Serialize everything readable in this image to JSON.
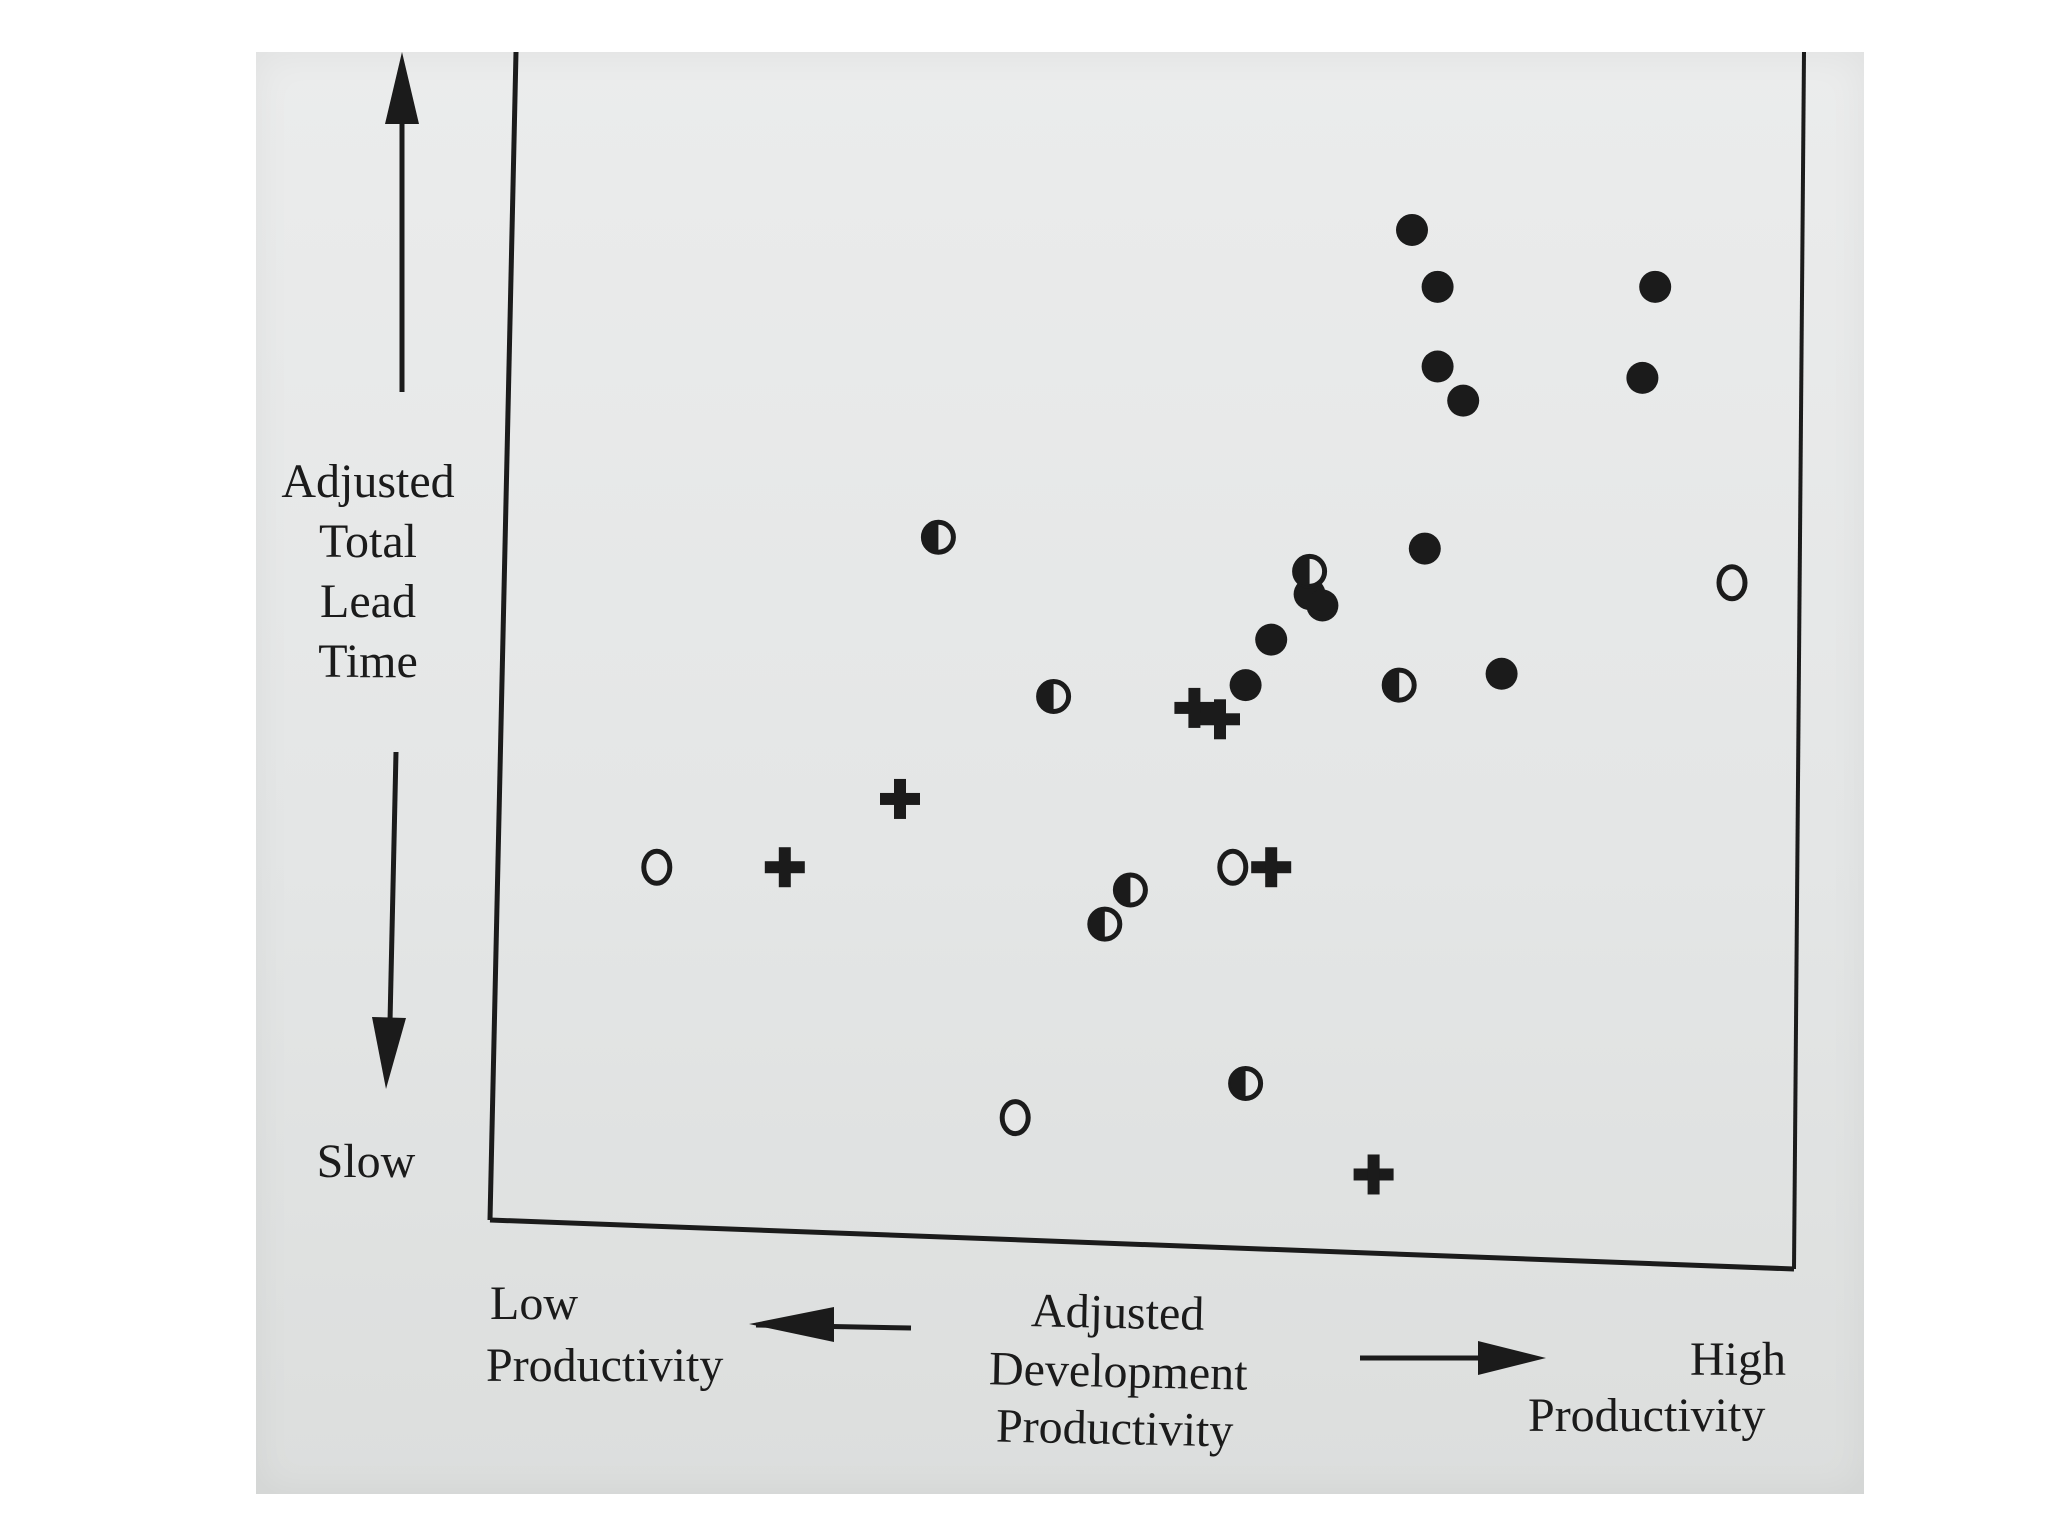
{
  "chart_data": {
    "type": "scatter",
    "title": "",
    "ylabel_lines": [
      "Adjusted",
      "Total",
      "Lead",
      "Time"
    ],
    "y_low_label": "Slow",
    "xlabel_lines": [
      "Adjusted",
      "Development",
      "Productivity"
    ],
    "x_low_label_lines": [
      "Low",
      "Productivity"
    ],
    "x_high_label_lines": [
      "High",
      "Productivity"
    ],
    "xlim": [
      0,
      100
    ],
    "ylim": [
      0,
      100
    ],
    "grid": false,
    "legend": "none",
    "series": [
      {
        "name": "filled-circle",
        "marker": "filled-circle",
        "points": [
          {
            "x": 70,
            "y": 87
          },
          {
            "x": 72,
            "y": 82
          },
          {
            "x": 72,
            "y": 75
          },
          {
            "x": 74,
            "y": 72
          },
          {
            "x": 89,
            "y": 82
          },
          {
            "x": 88,
            "y": 74
          },
          {
            "x": 71,
            "y": 59
          },
          {
            "x": 62,
            "y": 55
          },
          {
            "x": 63,
            "y": 54
          },
          {
            "x": 59,
            "y": 51
          },
          {
            "x": 57,
            "y": 47
          },
          {
            "x": 77,
            "y": 48
          }
        ]
      },
      {
        "name": "half-circle",
        "marker": "half-filled-circle",
        "points": [
          {
            "x": 33,
            "y": 60
          },
          {
            "x": 42,
            "y": 46
          },
          {
            "x": 62,
            "y": 57
          },
          {
            "x": 69,
            "y": 47
          },
          {
            "x": 48,
            "y": 29
          },
          {
            "x": 46,
            "y": 26
          },
          {
            "x": 57,
            "y": 12
          }
        ]
      },
      {
        "name": "open-circle",
        "marker": "open-circle",
        "points": [
          {
            "x": 11,
            "y": 31
          },
          {
            "x": 39,
            "y": 9
          },
          {
            "x": 56,
            "y": 31
          },
          {
            "x": 95,
            "y": 56
          }
        ]
      },
      {
        "name": "plus",
        "marker": "plus",
        "points": [
          {
            "x": 21,
            "y": 31
          },
          {
            "x": 30,
            "y": 37
          },
          {
            "x": 53,
            "y": 45
          },
          {
            "x": 55,
            "y": 44
          },
          {
            "x": 59,
            "y": 31
          },
          {
            "x": 67,
            "y": 4
          }
        ]
      }
    ]
  },
  "colors": {
    "ink": "#1b1b1b",
    "paper": "#e6e7e7"
  }
}
